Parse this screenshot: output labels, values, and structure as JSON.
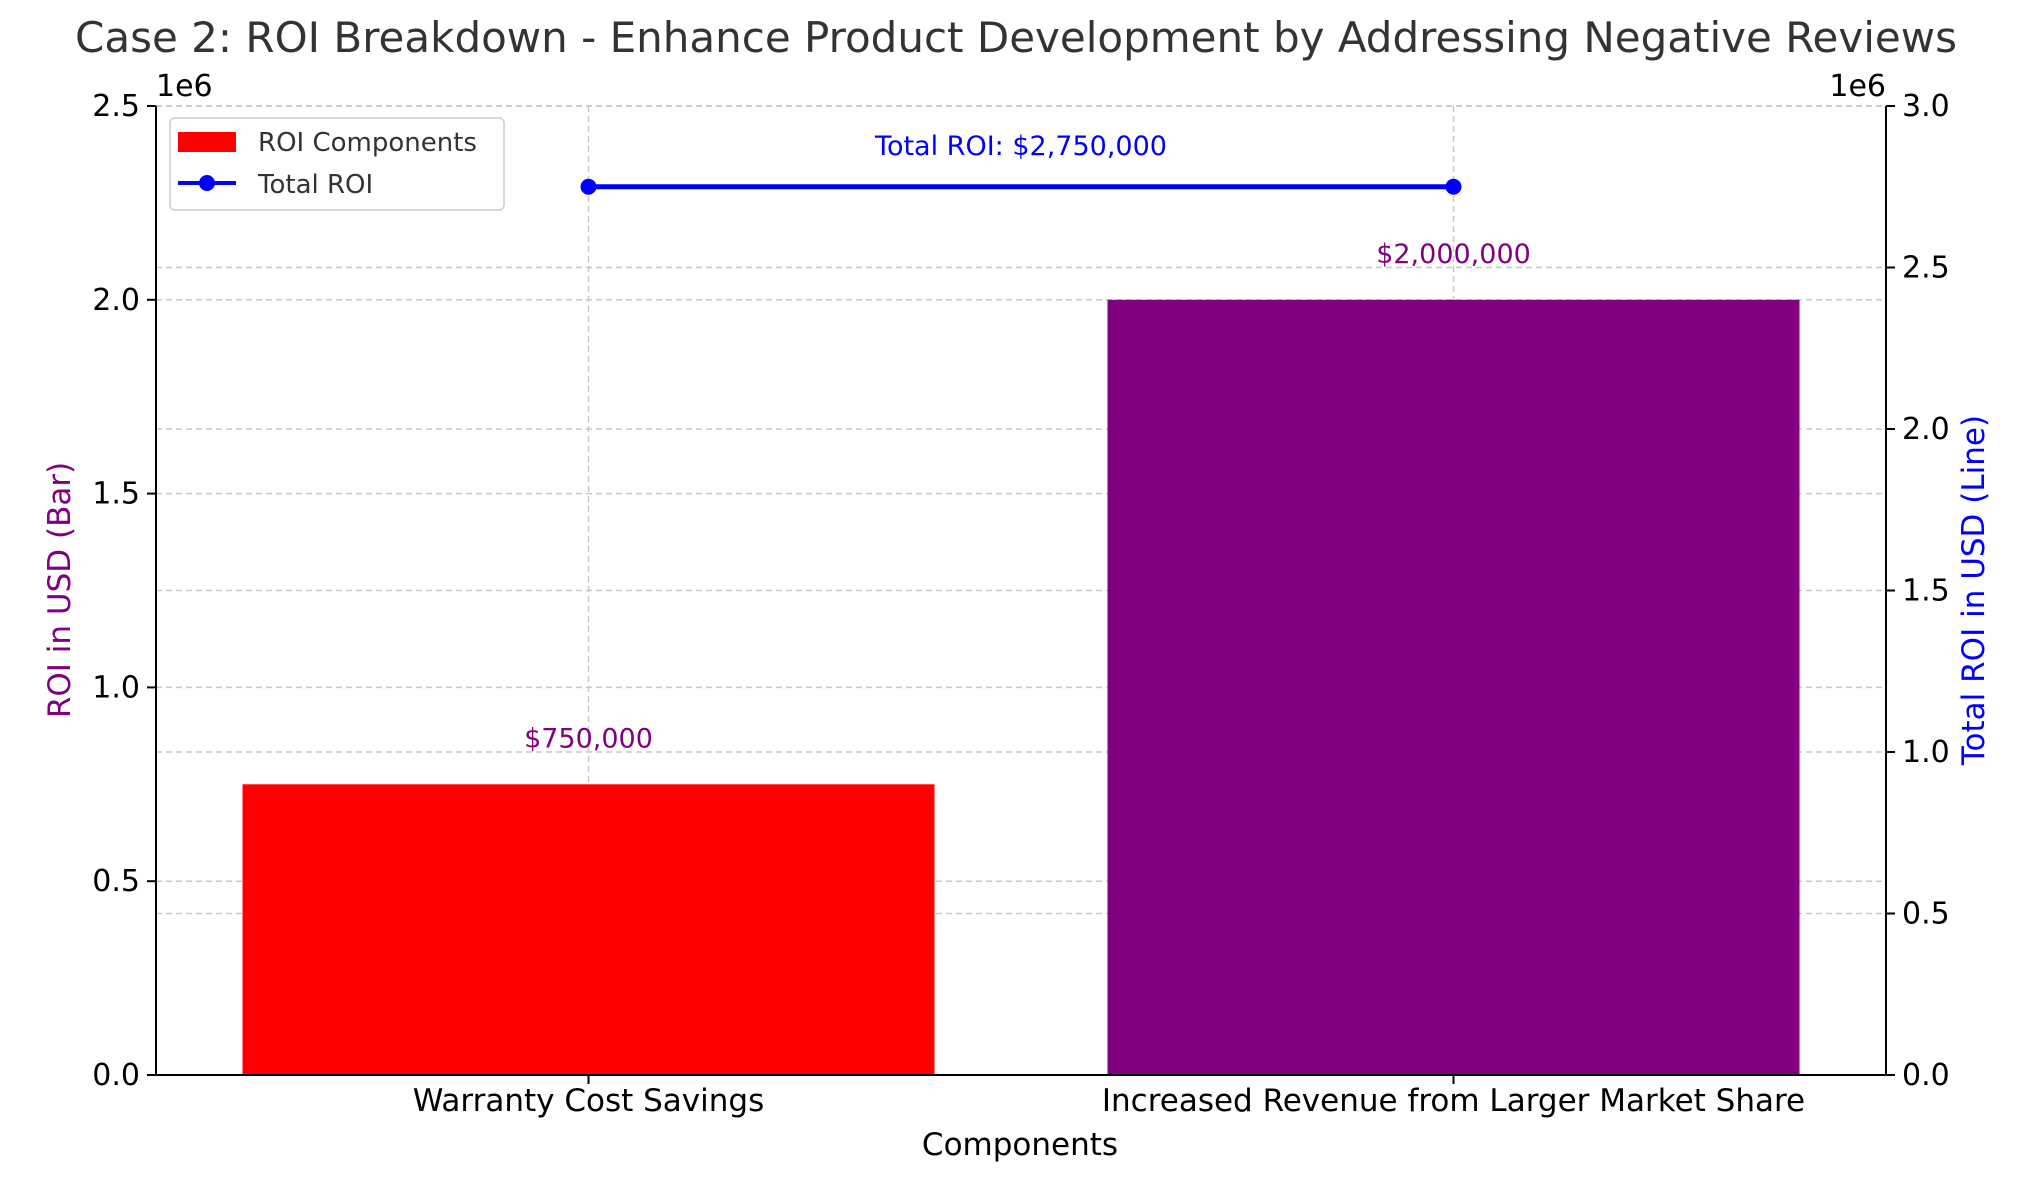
{
  "chart_data": {
    "type": "bar",
    "title": "Case 2: ROI Breakdown - Enhance Product Development by Addressing Negative Reviews",
    "xlabel": "Components",
    "ylabel": "ROI in USD (Bar)",
    "y2label": "Total ROI in USD (Line)",
    "y_offset_label": "1e6",
    "y2_offset_label": "1e6",
    "categories": [
      "Warranty Cost Savings",
      "Increased Revenue from Larger Market Share"
    ],
    "values": [
      750000,
      2000000
    ],
    "bar_colors": [
      "#ff0000",
      "#800080"
    ],
    "bar_labels": [
      "$750,000",
      "$2,000,000"
    ],
    "ylim": [
      0,
      2500000
    ],
    "yticks": [
      0,
      0.5,
      1.0,
      1.5,
      2.0,
      2.5
    ],
    "ytick_labels": [
      "0.0",
      "0.5",
      "1.0",
      "1.5",
      "2.0",
      "2.5"
    ],
    "y2lim": [
      0,
      3000000
    ],
    "y2ticks": [
      0,
      0.5,
      1.0,
      1.5,
      2.0,
      2.5,
      3.0
    ],
    "y2tick_labels": [
      "0.0",
      "0.5",
      "1.0",
      "1.5",
      "2.0",
      "2.5",
      "3.0"
    ],
    "line_series": {
      "name": "Total ROI",
      "values": [
        2750000,
        2750000
      ],
      "color": "#0000ff",
      "annotation": "Total ROI: $2,750,000"
    },
    "legend": {
      "position": "top-left",
      "entries": [
        "ROI Components",
        "Total ROI"
      ]
    },
    "grid": true,
    "colors": {
      "ylabel": "#800080",
      "y2label": "#0000ff",
      "title": "#333333",
      "bar_label": "#800080"
    }
  }
}
